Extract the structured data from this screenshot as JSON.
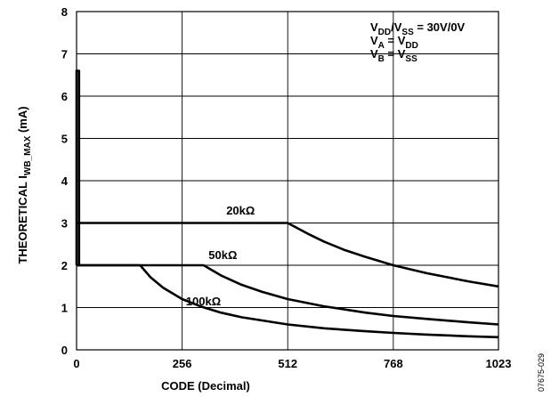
{
  "chart_data": {
    "type": "line",
    "xlabel": "CODE (Decimal)",
    "ylabel_main": "THEORETICAL I",
    "ylabel_sub": "WB_MAX",
    "ylabel_unit": " (mA)",
    "xlim": [
      0,
      1023
    ],
    "ylim": [
      0,
      8
    ],
    "x_ticks": [
      0,
      256,
      512,
      768,
      1023
    ],
    "y_ticks": [
      0,
      1,
      2,
      3,
      4,
      5,
      6,
      7,
      8
    ],
    "grid": true,
    "annotation_lines": [
      {
        "parts": [
          [
            "V",
            ""
          ],
          [
            "DD",
            "sub"
          ],
          [
            "/V",
            ""
          ],
          [
            "SS",
            "sub"
          ],
          [
            " = 30V/0V",
            ""
          ]
        ]
      },
      {
        "parts": [
          [
            "V",
            ""
          ],
          [
            "A",
            "sub"
          ],
          [
            " = V",
            ""
          ],
          [
            "DD",
            "sub"
          ]
        ]
      },
      {
        "parts": [
          [
            "V",
            ""
          ],
          [
            "B",
            "sub"
          ],
          [
            " = V",
            ""
          ],
          [
            "SS",
            "sub"
          ]
        ]
      }
    ],
    "series": [
      {
        "name": "20kΩ",
        "label_x": 363,
        "label_y": 3.2,
        "x": [
          0,
          512,
          560,
          600,
          650,
          700,
          768,
          850,
          950,
          1023
        ],
        "y": [
          3.0,
          3.0,
          2.75,
          2.56,
          2.36,
          2.2,
          2.0,
          1.81,
          1.62,
          1.5
        ]
      },
      {
        "name": "50kΩ",
        "label_x": 320,
        "label_y": 2.15,
        "x": [
          0,
          308,
          350,
          400,
          450,
          512,
          600,
          700,
          768,
          850,
          950,
          1023
        ],
        "y": [
          2.0,
          2.0,
          1.76,
          1.54,
          1.37,
          1.2,
          1.03,
          0.88,
          0.8,
          0.73,
          0.65,
          0.6
        ]
      },
      {
        "name": "100kΩ",
        "label_x": 265,
        "label_y": 1.05,
        "x": [
          0,
          154,
          180,
          210,
          256,
          300,
          350,
          400,
          512,
          600,
          700,
          768,
          850,
          950,
          1023
        ],
        "y": [
          2.0,
          2.0,
          1.71,
          1.47,
          1.2,
          1.03,
          0.88,
          0.77,
          0.6,
          0.51,
          0.44,
          0.4,
          0.36,
          0.32,
          0.3
        ]
      },
      {
        "name": "",
        "label_x": null,
        "label_y": null,
        "x": [
          0,
          0,
          6,
          6
        ],
        "y": [
          2.0,
          6.6,
          6.6,
          2.0
        ]
      }
    ],
    "figure_code": "07675-029"
  }
}
